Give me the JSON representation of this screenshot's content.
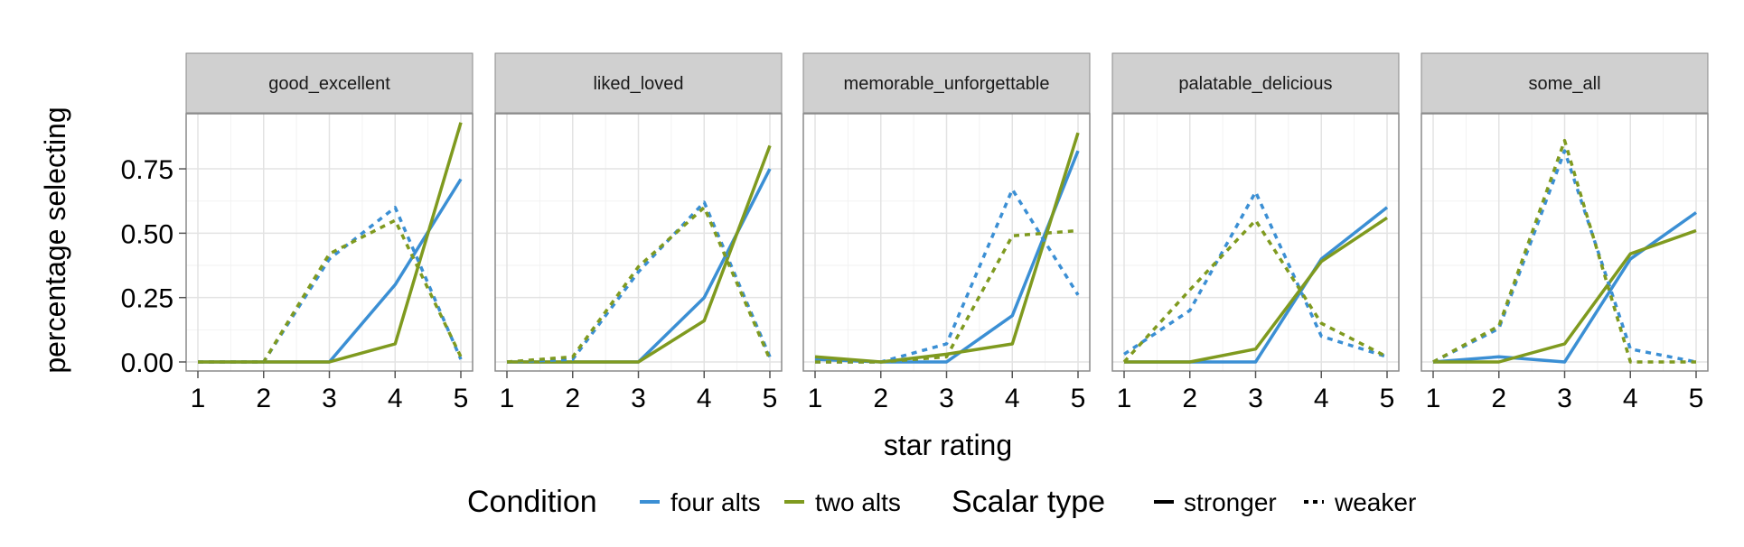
{
  "chart_data": {
    "type": "line",
    "xlabel": "star rating",
    "ylabel": "percentage selecting",
    "xlim": [
      1,
      5
    ],
    "ylim": [
      0,
      0.95
    ],
    "x_ticks": [
      "1",
      "2",
      "3",
      "4",
      "5"
    ],
    "y_ticks": [
      "0.00",
      "0.25",
      "0.50",
      "0.75"
    ],
    "y_tick_values": [
      0,
      0.25,
      0.5,
      0.75
    ],
    "grid": true,
    "legend_position": "bottom",
    "colors": {
      "four alts": "#3b8fd4",
      "two alts": "#7f9a1f"
    },
    "legend": {
      "condition_title": "Condition",
      "condition_items": [
        "four alts",
        "two alts"
      ],
      "scalar_title": "Scalar type",
      "scalar_items": [
        "stronger",
        "weaker"
      ]
    },
    "panels": [
      {
        "title": "good_excellent",
        "x": [
          1,
          2,
          3,
          4,
          5
        ],
        "series": [
          {
            "condition": "four alts",
            "scalar": "stronger",
            "values": [
              0,
              0,
              0,
              0.3,
              0.71
            ]
          },
          {
            "condition": "two alts",
            "scalar": "stronger",
            "values": [
              0,
              0,
              0,
              0.07,
              0.93
            ]
          },
          {
            "condition": "four alts",
            "scalar": "weaker",
            "values": [
              0,
              0,
              0.4,
              0.6,
              0.01
            ]
          },
          {
            "condition": "two alts",
            "scalar": "weaker",
            "values": [
              0,
              0,
              0.42,
              0.55,
              0.02
            ]
          }
        ]
      },
      {
        "title": "liked_loved",
        "x": [
          1,
          2,
          3,
          4,
          5
        ],
        "series": [
          {
            "condition": "four alts",
            "scalar": "stronger",
            "values": [
              0,
              0,
              0,
              0.25,
              0.75
            ]
          },
          {
            "condition": "two alts",
            "scalar": "stronger",
            "values": [
              0,
              0,
              0,
              0.16,
              0.84
            ]
          },
          {
            "condition": "four alts",
            "scalar": "weaker",
            "values": [
              0,
              0.01,
              0.35,
              0.62,
              0.02
            ]
          },
          {
            "condition": "two alts",
            "scalar": "weaker",
            "values": [
              0,
              0.02,
              0.37,
              0.6,
              0.01
            ]
          }
        ]
      },
      {
        "title": "memorable_unforgettable",
        "x": [
          1,
          2,
          3,
          4,
          5
        ],
        "series": [
          {
            "condition": "four alts",
            "scalar": "stronger",
            "values": [
              0.01,
              0,
              0,
              0.18,
              0.82
            ]
          },
          {
            "condition": "two alts",
            "scalar": "stronger",
            "values": [
              0.02,
              0,
              0.03,
              0.07,
              0.89
            ]
          },
          {
            "condition": "four alts",
            "scalar": "weaker",
            "values": [
              0,
              0,
              0.07,
              0.67,
              0.26
            ]
          },
          {
            "condition": "two alts",
            "scalar": "weaker",
            "values": [
              0,
              0,
              0.02,
              0.49,
              0.51
            ]
          }
        ]
      },
      {
        "title": "palatable_delicious",
        "x": [
          1,
          2,
          3,
          4,
          5
        ],
        "series": [
          {
            "condition": "four alts",
            "scalar": "stronger",
            "values": [
              0,
              0,
              0,
              0.4,
              0.6
            ]
          },
          {
            "condition": "two alts",
            "scalar": "stronger",
            "values": [
              0,
              0,
              0.05,
              0.39,
              0.56
            ]
          },
          {
            "condition": "four alts",
            "scalar": "weaker",
            "values": [
              0.03,
              0.2,
              0.66,
              0.1,
              0.02
            ]
          },
          {
            "condition": "two alts",
            "scalar": "weaker",
            "values": [
              0,
              0.28,
              0.55,
              0.15,
              0.02
            ]
          }
        ]
      },
      {
        "title": "some_all",
        "x": [
          1,
          2,
          3,
          4,
          5
        ],
        "series": [
          {
            "condition": "four alts",
            "scalar": "stronger",
            "values": [
              0,
              0.02,
              0,
              0.4,
              0.58
            ]
          },
          {
            "condition": "two alts",
            "scalar": "stronger",
            "values": [
              0,
              0,
              0.07,
              0.42,
              0.51
            ]
          },
          {
            "condition": "four alts",
            "scalar": "weaker",
            "values": [
              0,
              0.13,
              0.82,
              0.05,
              0
            ]
          },
          {
            "condition": "two alts",
            "scalar": "weaker",
            "values": [
              0,
              0.14,
              0.86,
              0,
              0
            ]
          }
        ]
      }
    ]
  }
}
